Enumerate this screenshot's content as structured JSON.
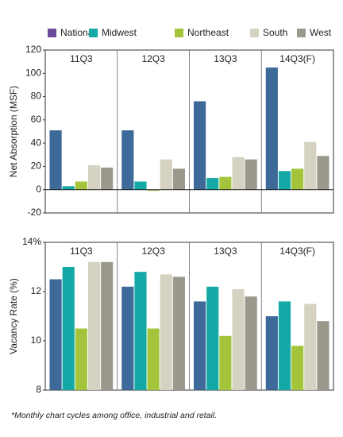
{
  "legend": {
    "names": [
      "National",
      "Midwest",
      "Northeast",
      "South",
      "West"
    ],
    "colors": [
      "#6b4c9a",
      "#14a9a6",
      "#a4c43c",
      "#d5d2c2",
      "#9a998b"
    ]
  },
  "chart_data": [
    {
      "type": "bar",
      "ylabel": "Net Absorption (MSF)",
      "categories": [
        "11Q3",
        "12Q3",
        "13Q3",
        "14Q3(F)"
      ],
      "series": [
        {
          "color": "#3d6a99",
          "values": [
            51,
            51,
            76,
            105
          ]
        },
        {
          "color": "#14a9a6",
          "values": [
            3,
            7,
            10,
            16
          ]
        },
        {
          "color": "#a4c43c",
          "values": [
            7,
            -1,
            11,
            18
          ]
        },
        {
          "color": "#d5d2c2",
          "values": [
            21,
            26,
            28,
            41
          ]
        },
        {
          "color": "#9a998b",
          "values": [
            19,
            18,
            26,
            29
          ]
        }
      ],
      "ylim": [
        -20,
        120
      ],
      "yticks": [
        -20,
        0,
        20,
        40,
        60,
        80,
        100,
        120
      ],
      "grid": false
    },
    {
      "type": "bar",
      "ylabel": "Vacancy Rate (%)",
      "categories": [
        "11Q3",
        "12Q3",
        "13Q3",
        "14Q3(F)"
      ],
      "series": [
        {
          "color": "#3d6a99",
          "values": [
            12.5,
            12.2,
            11.6,
            11.0
          ]
        },
        {
          "color": "#14a9a6",
          "values": [
            13.0,
            12.8,
            12.2,
            11.6
          ]
        },
        {
          "color": "#a4c43c",
          "values": [
            10.5,
            10.5,
            10.2,
            9.8
          ]
        },
        {
          "color": "#d5d2c2",
          "values": [
            13.2,
            12.7,
            12.1,
            11.5
          ]
        },
        {
          "color": "#9a998b",
          "values": [
            13.2,
            12.6,
            11.8,
            10.8
          ]
        }
      ],
      "ylim": [
        8,
        14
      ],
      "yticks": [
        8,
        10,
        12,
        {
          "value": 14,
          "label": "14%"
        }
      ],
      "grid": false
    }
  ],
  "note": "*Monthly chart cycles among office, industrial and retail."
}
